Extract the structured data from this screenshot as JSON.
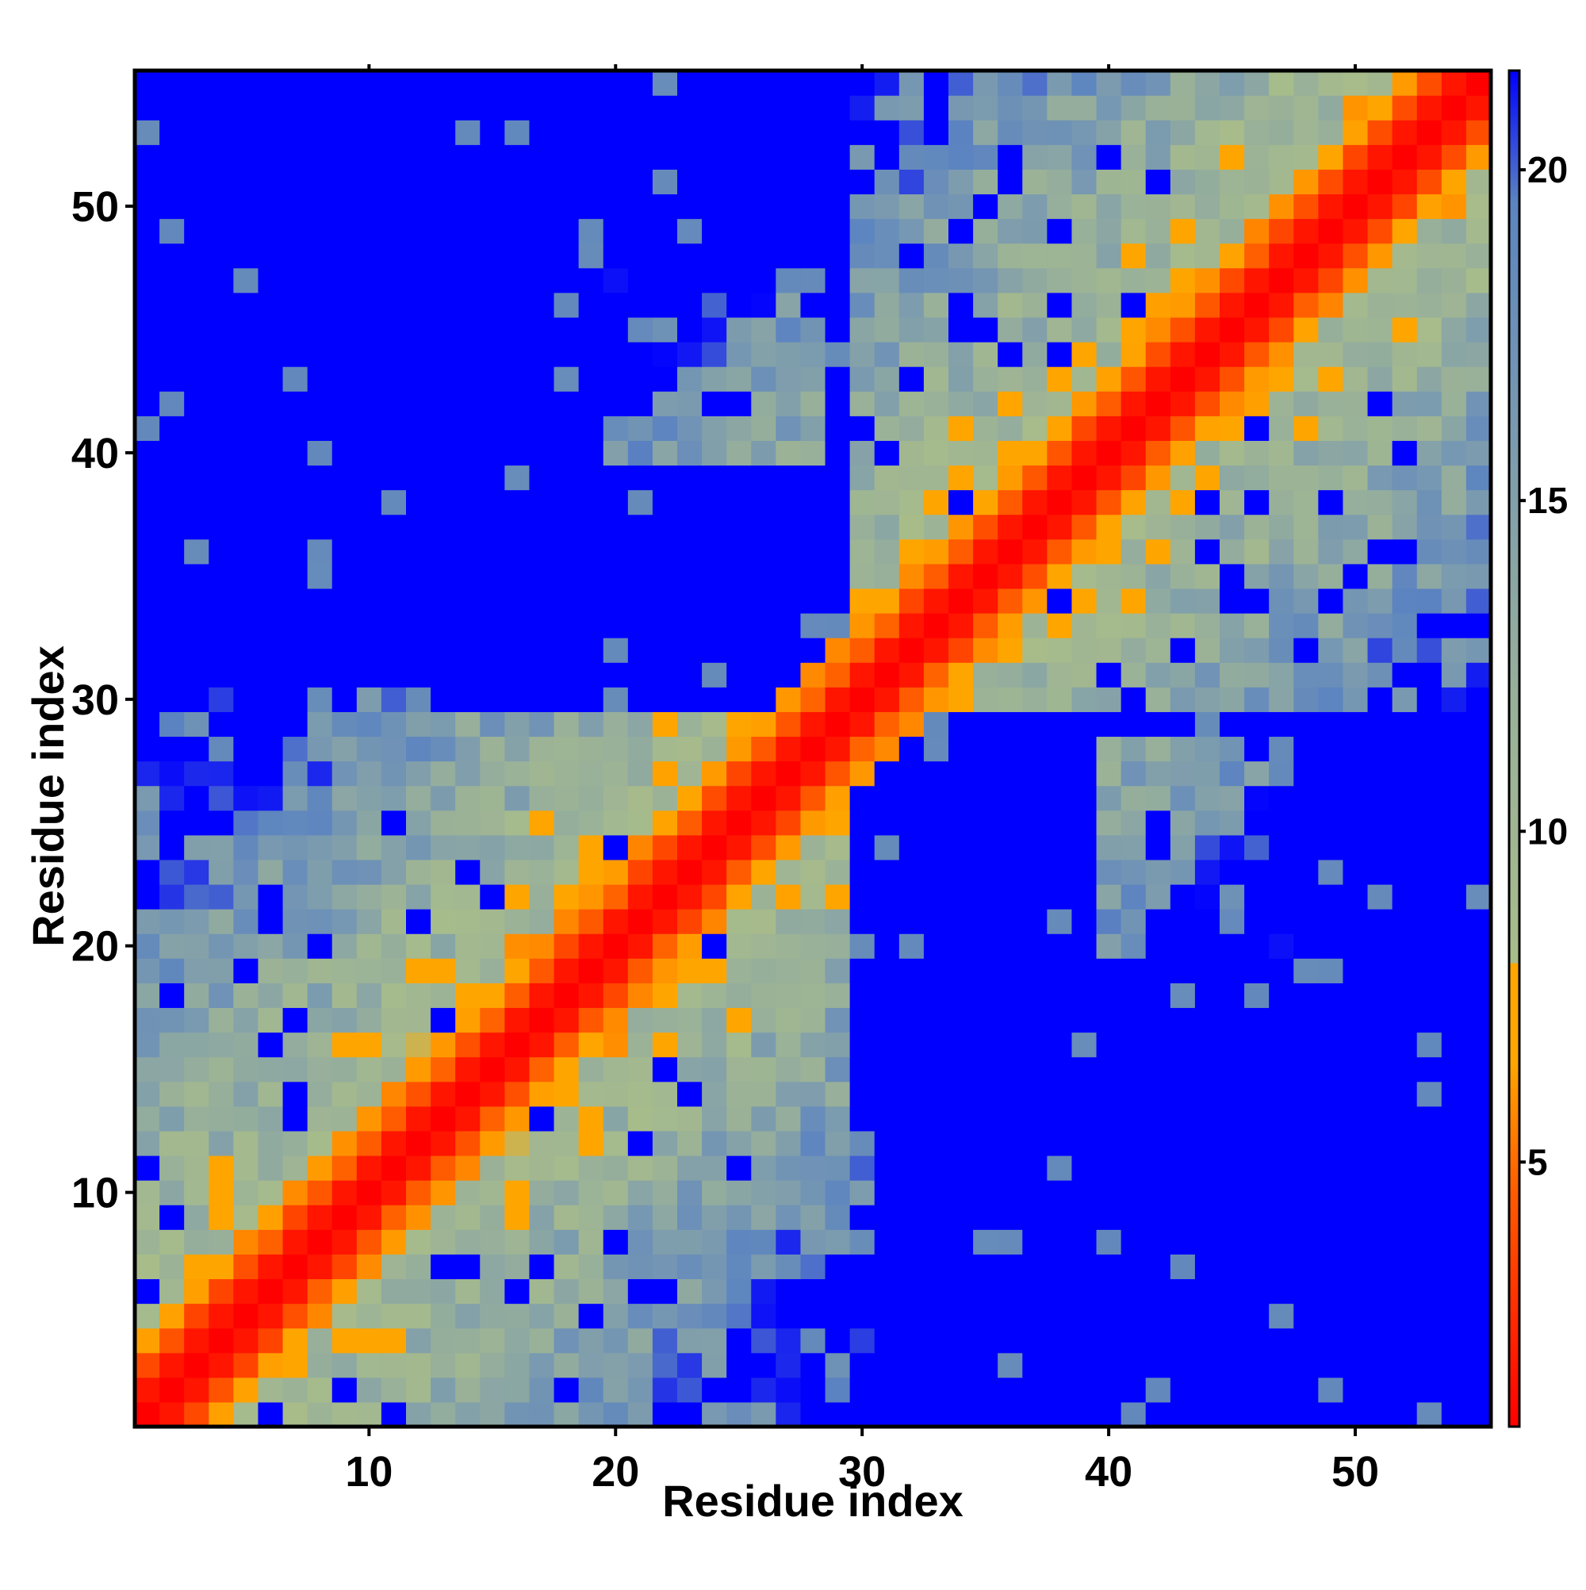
{
  "chart_data": {
    "type": "heatmap",
    "title": "",
    "xlabel": "Residue index",
    "ylabel": "Residue index",
    "n_residues": 55,
    "xlim": [
      1,
      55
    ],
    "ylim": [
      1,
      55
    ],
    "x_ticks": [
      10,
      20,
      30,
      40,
      50
    ],
    "y_ticks": [
      10,
      20,
      30,
      40,
      50
    ],
    "colorbar": {
      "ticks": [
        5,
        10,
        15,
        20
      ],
      "range": [
        1,
        21.5
      ],
      "stops": [
        {
          "value": 1.0,
          "color": "#ff0000"
        },
        {
          "value": 4.5,
          "color": "#ff5a00"
        },
        {
          "value": 6.5,
          "color": "#ffa500"
        },
        {
          "value": 8.0,
          "color": "#ffa500"
        },
        {
          "value": 8.01,
          "color": "#a8bc8a"
        },
        {
          "value": 12.0,
          "color": "#98b09a"
        },
        {
          "value": 16.0,
          "color": "#7a9ab0"
        },
        {
          "value": 19.5,
          "color": "#5c84c0"
        },
        {
          "value": 21.5,
          "color": "#0000ff"
        }
      ]
    },
    "background_value": 21.5,
    "grid": false,
    "value_description": "pairwise residue distance; blue = far/no contact, red = diagonal",
    "pattern": {
      "diagonal_band": [
        {
          "d": 0,
          "value": 1.0
        },
        {
          "d": 1,
          "value": 1.8
        },
        {
          "d": 2,
          "value": 4.2
        },
        {
          "d": 3,
          "value": 6.2
        }
      ],
      "far_regions": [
        {
          "rows": [
            30,
            55
          ],
          "cols": [
            1,
            29
          ]
        },
        {
          "rows": [
            1,
            29
          ],
          "cols": [
            30,
            55
          ]
        }
      ],
      "contact_islands": [
        {
          "rows": [
            20,
            28
          ],
          "cols": [
            40,
            47
          ]
        },
        {
          "rows": [
            4,
            12
          ],
          "cols": [
            24,
            30
          ]
        },
        {
          "rows": [
            30,
            55
          ],
          "cols": [
            30,
            55
          ]
        },
        {
          "rows": [
            1,
            29
          ],
          "cols": [
            1,
            29
          ]
        }
      ]
    }
  }
}
